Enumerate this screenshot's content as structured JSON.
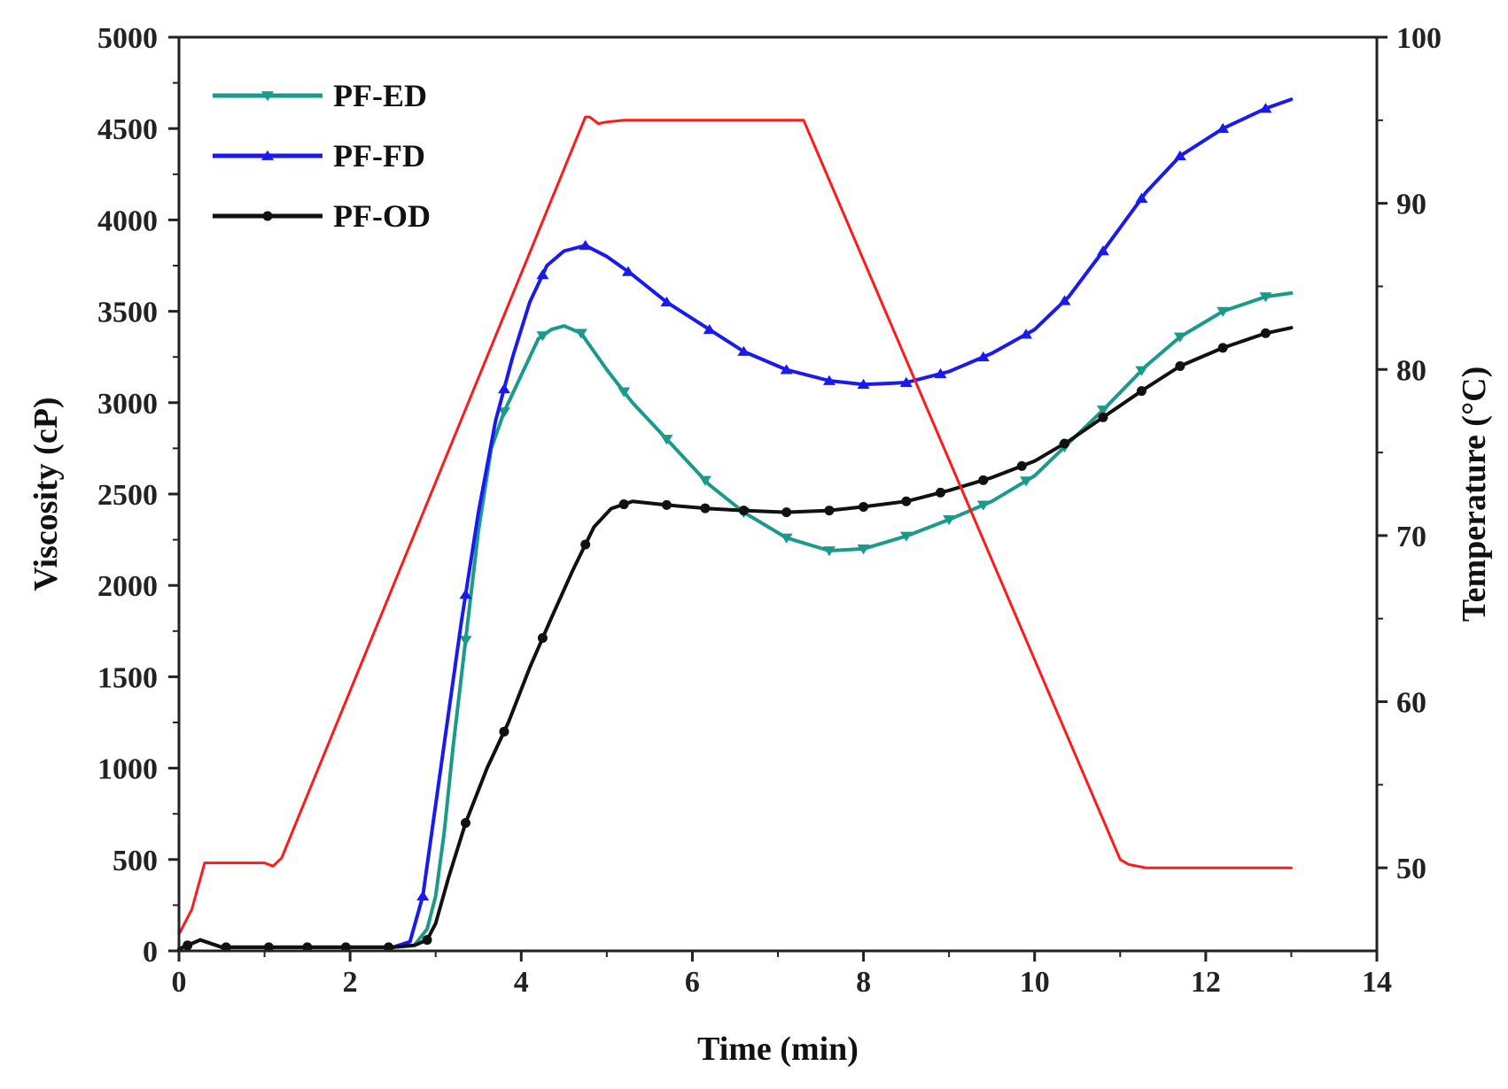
{
  "chart_data": {
    "type": "line",
    "title": "",
    "xlabel": "Time (min)",
    "ylabel": "Viscosity (cP)",
    "y2label": "Temperature (°C)",
    "xlim": [
      0,
      14
    ],
    "ylim": [
      0,
      5000
    ],
    "y2lim": [
      45,
      100
    ],
    "x_ticks": [
      "0",
      "2",
      "4",
      "6",
      "8",
      "10",
      "12",
      "14"
    ],
    "y_ticks": [
      "0",
      "500",
      "1000",
      "1500",
      "2000",
      "2500",
      "3000",
      "3500",
      "4000",
      "4500",
      "5000"
    ],
    "y2_ticks": [
      "50",
      "60",
      "70",
      "80",
      "90",
      "100"
    ],
    "legend_position": "top-left",
    "series": [
      {
        "name": "PF-ED",
        "color": "#1a9a8a",
        "marker": "triangle-down",
        "axis": "left",
        "x": [
          0,
          0.1,
          0.25,
          0.5,
          1.0,
          1.5,
          2.0,
          2.5,
          2.75,
          2.9,
          3.0,
          3.1,
          3.2,
          3.35,
          3.5,
          3.65,
          3.8,
          4.0,
          4.2,
          4.35,
          4.5,
          4.7,
          5.0,
          5.3,
          5.7,
          6.2,
          6.6,
          7.1,
          7.6,
          8.0,
          8.5,
          9.0,
          9.5,
          10.0,
          10.4,
          10.8,
          11.3,
          11.7,
          12.2,
          12.7,
          13.0
        ],
        "y": [
          10,
          30,
          60,
          20,
          20,
          20,
          20,
          20,
          30,
          120,
          300,
          650,
          1100,
          1700,
          2300,
          2750,
          2950,
          3150,
          3350,
          3400,
          3420,
          3380,
          3180,
          3000,
          2800,
          2550,
          2400,
          2260,
          2190,
          2200,
          2270,
          2360,
          2460,
          2600,
          2780,
          2960,
          3200,
          3360,
          3500,
          3580,
          3600
        ],
        "marker_x": [
          3.35,
          3.8,
          4.25,
          4.7,
          5.2,
          5.7,
          6.15,
          6.6,
          7.1,
          7.6,
          8.0,
          8.5,
          9.0,
          9.4,
          9.9,
          10.35,
          10.8,
          11.25,
          11.7,
          12.2,
          12.7
        ]
      },
      {
        "name": "PF-FD",
        "color": "#1a1aee",
        "marker": "triangle-up",
        "axis": "left",
        "x": [
          0,
          0.1,
          0.25,
          0.5,
          1.0,
          1.5,
          2.0,
          2.5,
          2.7,
          2.85,
          3.0,
          3.15,
          3.3,
          3.5,
          3.7,
          3.9,
          4.1,
          4.3,
          4.5,
          4.75,
          5.0,
          5.3,
          5.7,
          6.2,
          6.6,
          7.1,
          7.6,
          8.0,
          8.5,
          9.0,
          9.5,
          10.0,
          10.4,
          10.8,
          11.3,
          11.7,
          12.2,
          12.7,
          13.0
        ],
        "y": [
          10,
          30,
          60,
          20,
          20,
          20,
          20,
          20,
          50,
          300,
          800,
          1300,
          1800,
          2400,
          2900,
          3250,
          3550,
          3750,
          3830,
          3860,
          3800,
          3700,
          3550,
          3400,
          3280,
          3180,
          3120,
          3100,
          3110,
          3170,
          3270,
          3400,
          3580,
          3830,
          4150,
          4350,
          4500,
          4610,
          4660
        ],
        "marker_x": [
          2.85,
          3.35,
          3.8,
          4.25,
          4.75,
          5.25,
          5.7,
          6.2,
          6.6,
          7.1,
          7.6,
          8.0,
          8.5,
          8.9,
          9.4,
          9.9,
          10.35,
          10.8,
          11.25,
          11.7,
          12.2,
          12.7
        ]
      },
      {
        "name": "PF-OD",
        "color": "#111111",
        "marker": "circle",
        "axis": "left",
        "x": [
          0,
          0.1,
          0.25,
          0.5,
          1.0,
          1.5,
          2.0,
          2.5,
          2.75,
          2.9,
          3.0,
          3.15,
          3.35,
          3.6,
          3.85,
          4.1,
          4.35,
          4.6,
          4.85,
          5.05,
          5.3,
          5.7,
          6.2,
          6.6,
          7.1,
          7.6,
          8.0,
          8.5,
          9.0,
          9.5,
          10.0,
          10.4,
          10.8,
          11.3,
          11.7,
          12.2,
          12.7,
          13.0
        ],
        "y": [
          10,
          30,
          60,
          20,
          20,
          20,
          20,
          20,
          30,
          60,
          150,
          400,
          700,
          1000,
          1250,
          1550,
          1820,
          2080,
          2320,
          2420,
          2460,
          2440,
          2420,
          2410,
          2400,
          2410,
          2430,
          2460,
          2520,
          2590,
          2680,
          2790,
          2920,
          3080,
          3200,
          3300,
          3380,
          3410
        ],
        "marker_x": [
          0.1,
          0.55,
          1.05,
          1.5,
          1.95,
          2.45,
          2.9,
          3.35,
          3.8,
          4.25,
          4.75,
          5.2,
          5.7,
          6.15,
          6.6,
          7.1,
          7.6,
          8.0,
          8.5,
          8.9,
          9.4,
          9.85,
          10.35,
          10.8,
          11.25,
          11.7,
          12.2,
          12.7
        ]
      },
      {
        "name": "Temperature",
        "color": "#ff1a1a",
        "marker": "none",
        "axis": "right",
        "x": [
          0,
          0.15,
          0.3,
          0.35,
          1.0,
          1.1,
          1.2,
          4.75,
          4.8,
          4.9,
          5.0,
          5.2,
          5.4,
          7.3,
          11.0,
          11.1,
          11.3,
          13.0
        ],
        "y": [
          46,
          47.5,
          50.3,
          50.3,
          50.3,
          50.1,
          50.6,
          95.2,
          95.2,
          94.8,
          94.9,
          95,
          95,
          95,
          50.5,
          50.2,
          50,
          50
        ]
      }
    ]
  }
}
